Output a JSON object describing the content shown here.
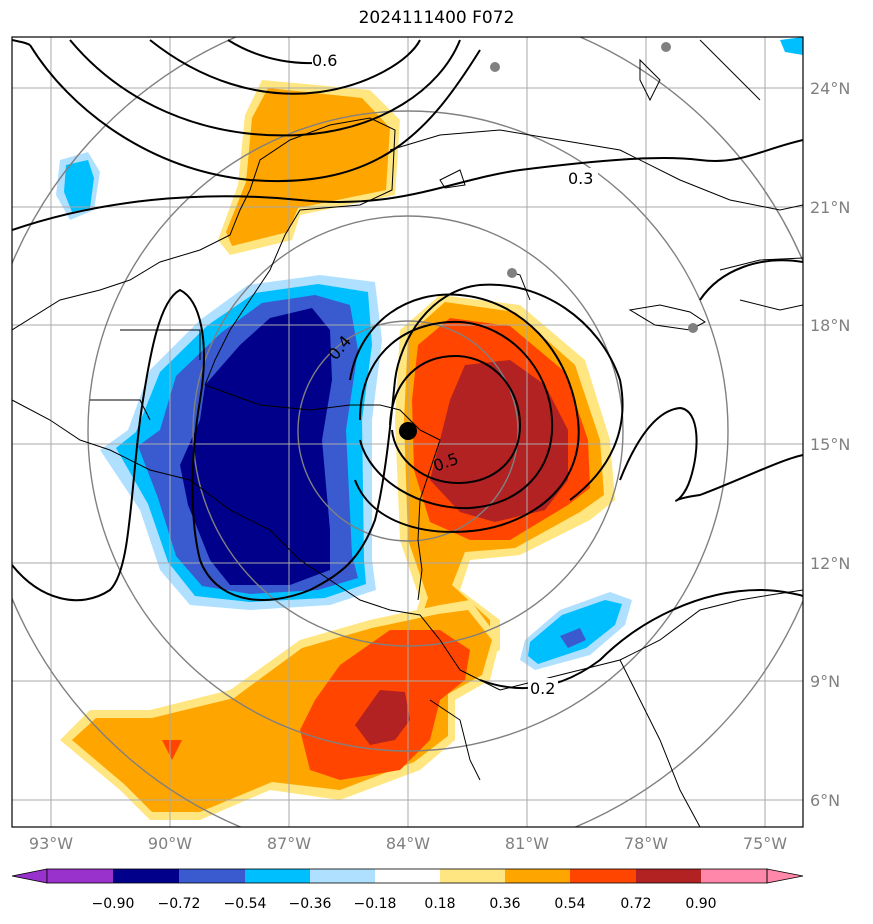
{
  "title": "2024111400 F072",
  "lon_labels": [
    "93°W",
    "90°W",
    "87°W",
    "84°W",
    "81°W",
    "78°W",
    "75°W"
  ],
  "lat_labels": [
    "24°N",
    "21°N",
    "18°N",
    "15°N",
    "12°N",
    "9°N",
    "6°N"
  ],
  "contour_labels": [
    "0.6",
    "0.3",
    "0.4",
    "0.5",
    "0.2"
  ],
  "colorbar": {
    "ticks": [
      "−0.90",
      "−0.72",
      "−0.54",
      "−0.36",
      "−0.18",
      "0.18",
      "0.36",
      "0.54",
      "0.72",
      "0.90"
    ],
    "colors": [
      "#9932cc",
      "#00008b",
      "#3a5bcf",
      "#00bfff",
      "#b0e0ff",
      "#ffffff",
      "#ffe680",
      "#ffa500",
      "#ff4500",
      "#b22222",
      "#ff88aa"
    ]
  },
  "map": {
    "lon_range": [
      -94,
      -74.5
    ],
    "lat_range": [
      5.5,
      25.2
    ],
    "storm_center": [
      -84,
      15.3
    ],
    "range_ring_color": "#808080",
    "fill_colors": {
      "strong_negative": "#00008b",
      "negative": "#3a5bcf",
      "weak_negative": "#00bfff",
      "faint_negative": "#b0e0ff",
      "faint_positive": "#ffe680",
      "positive": "#ffa500",
      "strong_positive": "#ff4500",
      "very_strong_positive": "#b22222"
    }
  }
}
